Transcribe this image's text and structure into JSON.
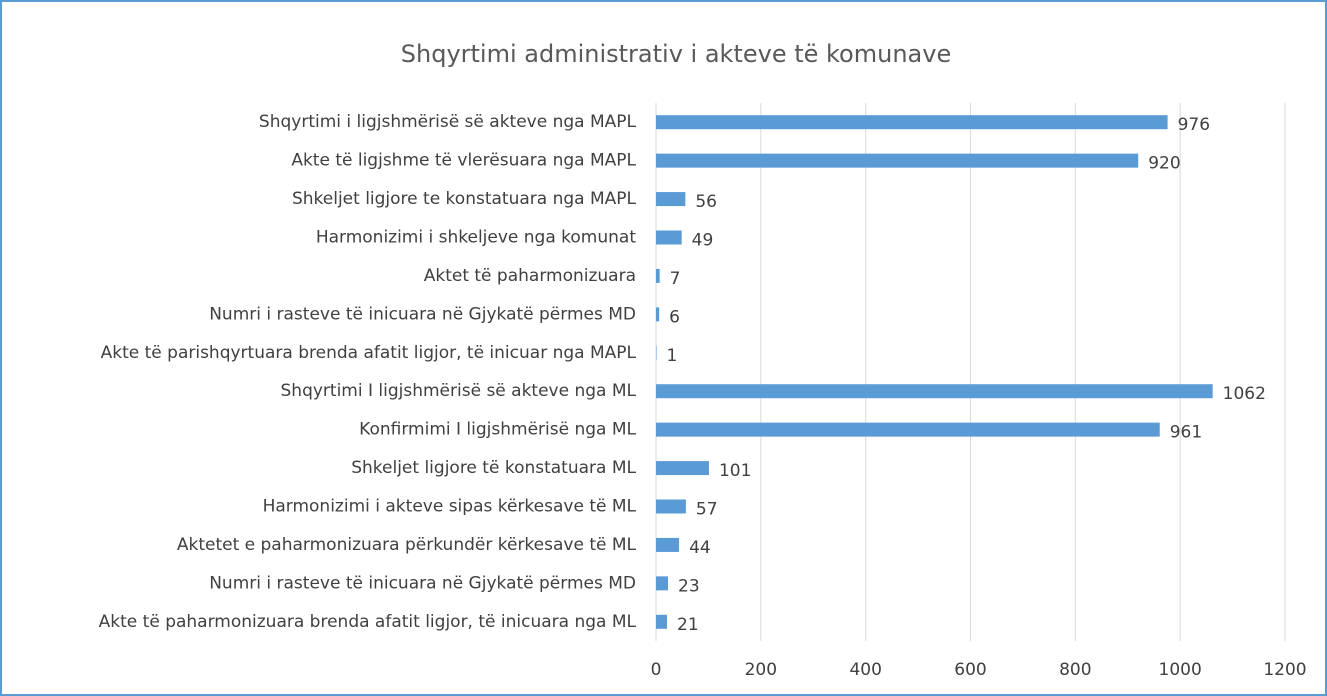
{
  "chart_data": {
    "type": "bar",
    "orientation": "horizontal",
    "title": "Shqyrtimi administrativ i akteve të komunave",
    "categories": [
      "Shqyrtimi i ligjshmërisë së akteve nga MAPL",
      "Akte të ligjshme të vlerësuara nga MAPL",
      "Shkeljet ligjore te konstatuara nga MAPL",
      "Harmonizimi i shkeljeve nga komunat",
      "Aktet të paharmonizuara",
      "Numri i rasteve të inicuara në Gjykatë përmes MD",
      "Akte të parishqyrtuara brenda afatit ligjor, të inicuar nga MAPL",
      "Shqyrtimi I ligjshmërisë së akteve nga ML",
      "Konfirmimi I ligjshmërisë nga ML",
      "Shkeljet ligjore të konstatuara ML",
      "Harmonizimi i akteve sipas kërkesave të ML",
      "Aktetet e paharmonizuara përkundër kërkesave të ML",
      "Numri i rasteve të inicuara në Gjykatë përmes MD",
      "Akte të paharmonizuara brenda afatit ligjor, të inicuara nga ML"
    ],
    "values": [
      976,
      920,
      56,
      49,
      7,
      6,
      1,
      1062,
      961,
      101,
      57,
      44,
      23,
      21
    ],
    "color": "#5b9bd5",
    "xlim": [
      0,
      1200
    ],
    "xticks": [
      0,
      200,
      400,
      600,
      800,
      1000,
      1200
    ],
    "grid": true
  }
}
